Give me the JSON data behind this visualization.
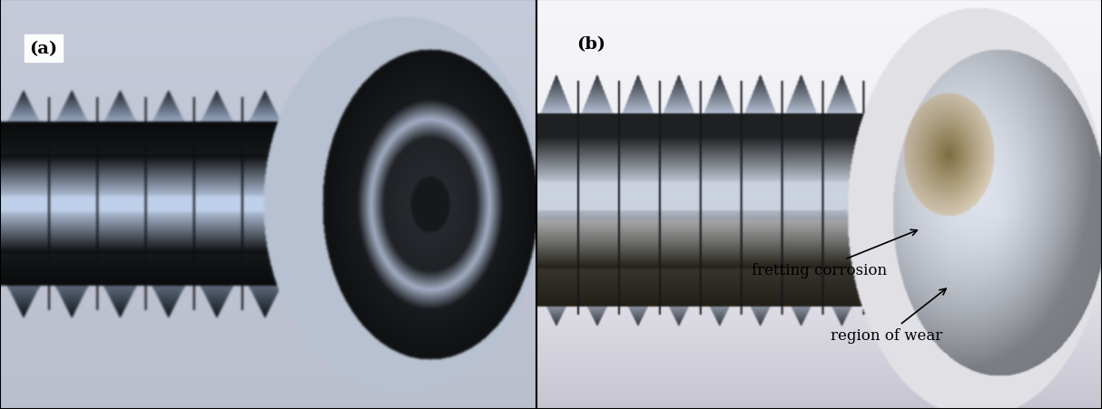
{
  "fig_width": 12.14,
  "fig_height": 4.52,
  "dpi": 100,
  "label_a": "(a)",
  "label_b": "(b)",
  "annotation1": "region of wear",
  "annotation2": "fretting corrosion",
  "label_fontsize": 14,
  "annotation_fontsize": 12,
  "panel_a_bg": [
    210,
    220,
    230
  ],
  "panel_b_bg": [
    200,
    200,
    205
  ],
  "border_color": "#000000"
}
